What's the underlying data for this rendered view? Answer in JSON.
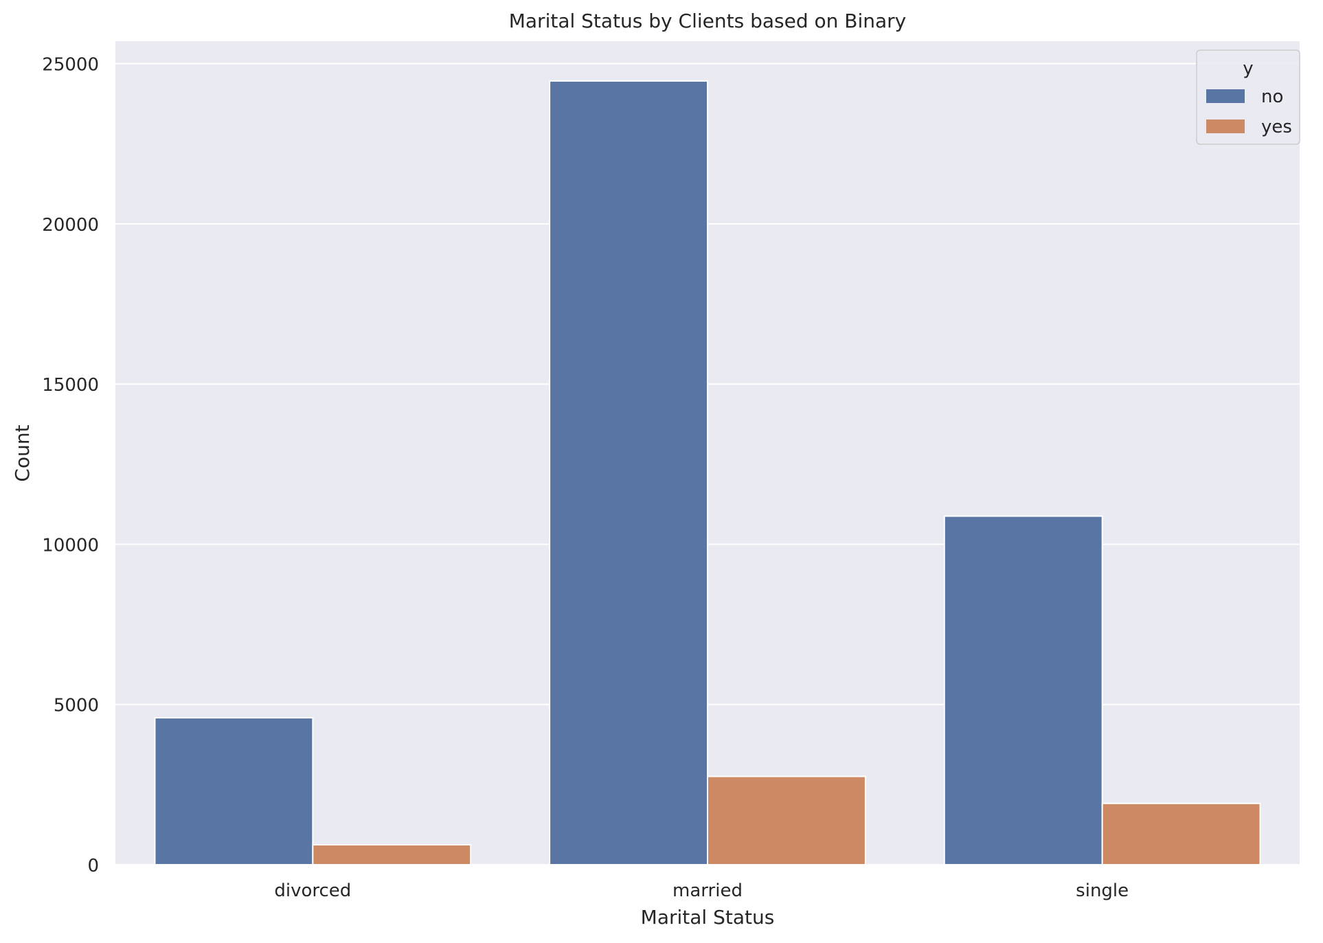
{
  "chart_data": {
    "type": "bar",
    "title": "Marital Status by Clients based on Binary",
    "xlabel": "Marital Status",
    "ylabel": "Count",
    "categories": [
      "divorced",
      "married",
      "single"
    ],
    "series": [
      {
        "name": "no",
        "values": [
          4585,
          24459,
          10878
        ],
        "color": "#5975a4"
      },
      {
        "name": "yes",
        "values": [
          622,
          2755,
          1912
        ],
        "color": "#cc8963"
      }
    ],
    "ylim": [
      0,
      25700
    ],
    "yticks": [
      0,
      5000,
      10000,
      15000,
      20000,
      25000
    ],
    "grid": true,
    "legend": {
      "title": "y",
      "position": "top-right"
    },
    "style": {
      "plot_background": "#eaeaf2",
      "grid_color": "#ffffff"
    }
  }
}
